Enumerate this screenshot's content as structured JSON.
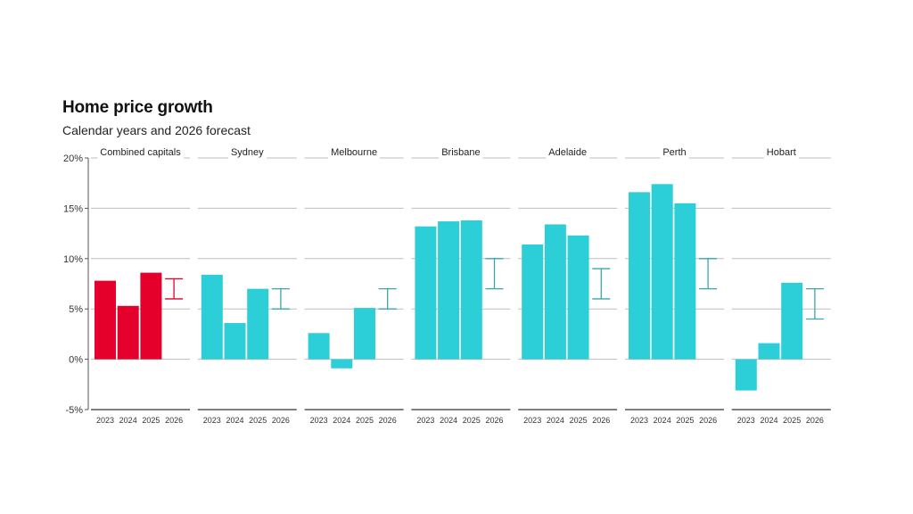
{
  "header": {
    "title": "Home price growth",
    "subtitle": "Calendar years and 2026 forecast"
  },
  "colors": {
    "highlight": "#e4002b",
    "bar": "#2ccfd7",
    "forecast_highlight": "#e4002b",
    "forecast": "#3aa6ad",
    "grid": "#bdbdbd",
    "axis": "#555555"
  },
  "chart_data": {
    "type": "bar",
    "title": "Home price growth",
    "subtitle": "Calendar years and 2026 forecast",
    "xlabel": "",
    "ylabel": "",
    "ylim": [
      -5,
      20
    ],
    "y_ticks": [
      -5,
      0,
      5,
      10,
      15,
      20
    ],
    "y_tick_labels": [
      "-5%",
      "0%",
      "5%",
      "10%",
      "15%",
      "20%"
    ],
    "categories": [
      "2023",
      "2024",
      "2025",
      "2026"
    ],
    "grid": true,
    "panels": [
      {
        "name": "Combined capitals",
        "highlight": true,
        "values": [
          7.8,
          5.3,
          8.6
        ],
        "forecast_range": [
          6,
          8
        ]
      },
      {
        "name": "Sydney",
        "highlight": false,
        "values": [
          8.4,
          3.6,
          7.0
        ],
        "forecast_range": [
          5,
          7
        ]
      },
      {
        "name": "Melbourne",
        "highlight": false,
        "values": [
          2.6,
          -0.9,
          5.1
        ],
        "forecast_range": [
          5,
          7
        ]
      },
      {
        "name": "Brisbane",
        "highlight": false,
        "values": [
          13.2,
          13.7,
          13.8
        ],
        "forecast_range": [
          7,
          10
        ]
      },
      {
        "name": "Adelaide",
        "highlight": false,
        "values": [
          11.4,
          13.4,
          12.3
        ],
        "forecast_range": [
          6,
          9
        ]
      },
      {
        "name": "Perth",
        "highlight": false,
        "values": [
          16.6,
          17.4,
          15.5
        ],
        "forecast_range": [
          7,
          10
        ]
      },
      {
        "name": "Hobart",
        "highlight": false,
        "values": [
          -3.1,
          1.6,
          7.6
        ],
        "forecast_range": [
          4,
          7
        ]
      }
    ]
  }
}
